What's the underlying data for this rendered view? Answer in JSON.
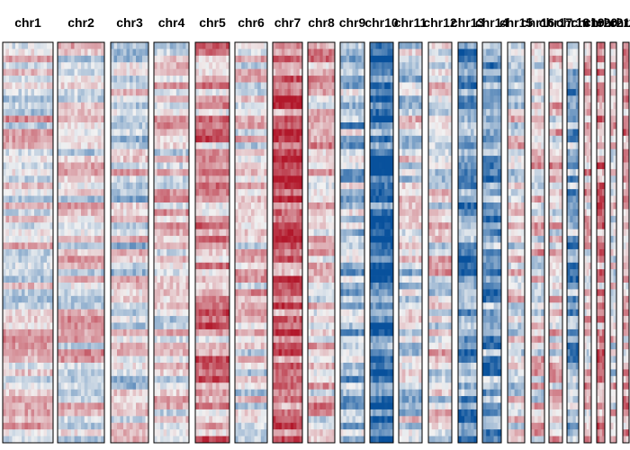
{
  "chart_data": {
    "type": "heatmap",
    "title": "",
    "xlabel": "",
    "ylabel": "",
    "legend": "none",
    "grid": false,
    "color_scale": {
      "type": "diverging",
      "low": "#08519c",
      "mid": "#f2f2f2",
      "high": "#b2182b"
    },
    "rows_per_panel": 60,
    "panels": [
      {
        "label": "chr1",
        "bias": 0.12,
        "bins": 16
      },
      {
        "label": "chr2",
        "bias": 0.08,
        "bins": 14
      },
      {
        "label": "chr3",
        "bias": -0.05,
        "bins": 12
      },
      {
        "label": "chr4",
        "bias": 0.08,
        "bins": 11
      },
      {
        "label": "chr5",
        "bias": 0.38,
        "bins": 10
      },
      {
        "label": "chr6",
        "bias": 0.05,
        "bins": 10
      },
      {
        "label": "chr7",
        "bias": 0.62,
        "bins": 10
      },
      {
        "label": "chr8",
        "bias": 0.2,
        "bins": 9
      },
      {
        "label": "chr9",
        "bias": -0.32,
        "bins": 8
      },
      {
        "label": "chr10",
        "bias": -0.72,
        "bins": 8
      },
      {
        "label": "chr11",
        "bias": -0.1,
        "bins": 7
      },
      {
        "label": "chr12",
        "bias": 0.04,
        "bins": 7
      },
      {
        "label": "chr13",
        "bias": -0.62,
        "bins": 6
      },
      {
        "label": "chr14",
        "bias": -0.5,
        "bins": 5
      },
      {
        "label": "chr15",
        "bias": 0.0,
        "bins": 5
      },
      {
        "label": "chr16",
        "bias": 0.1,
        "bins": 4
      },
      {
        "label": "chr17",
        "bias": 0.12,
        "bins": 4
      },
      {
        "label": "chr18",
        "bias": -0.42,
        "bins": 4
      },
      {
        "label": "chr19",
        "bias": 0.18,
        "bins": 3
      },
      {
        "label": "chr20",
        "bias": 0.4,
        "bins": 3
      },
      {
        "label": "chr21",
        "bias": 0.05,
        "bins": 2
      },
      {
        "label": "chr22",
        "bias": 0.3,
        "bins": 2
      }
    ]
  }
}
